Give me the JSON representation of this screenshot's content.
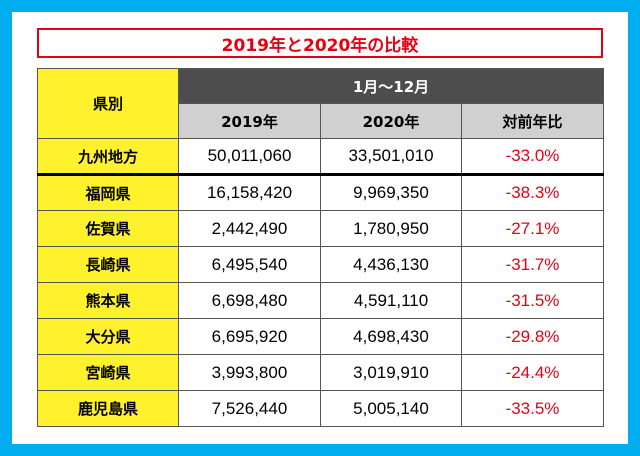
{
  "title": "2019年と2020年の比較",
  "header": {
    "prefecture_label": "県別",
    "period_label": "1月〜12月",
    "col_2019": "2019年",
    "col_2020": "2020年",
    "col_ratio": "対前年比"
  },
  "summary": {
    "name": "九州地方",
    "v2019": "50,011,060",
    "v2020": "33,501,010",
    "ratio": "-33.0%"
  },
  "rows": [
    {
      "name": "福岡県",
      "v2019": "16,158,420",
      "v2020": "9,969,350",
      "ratio": "-38.3%"
    },
    {
      "name": "佐賀県",
      "v2019": "2,442,490",
      "v2020": "1,780,950",
      "ratio": "-27.1%"
    },
    {
      "name": "長崎県",
      "v2019": "6,495,540",
      "v2020": "4,436,130",
      "ratio": "-31.7%"
    },
    {
      "name": "熊本県",
      "v2019": "6,698,480",
      "v2020": "4,591,110",
      "ratio": "-31.5%"
    },
    {
      "name": "大分県",
      "v2019": "6,695,920",
      "v2020": "4,698,430",
      "ratio": "-29.8%"
    },
    {
      "name": "宮崎県",
      "v2019": "3,993,800",
      "v2020": "3,019,910",
      "ratio": "-24.4%"
    },
    {
      "name": "鹿児島県",
      "v2019": "7,526,440",
      "v2020": "5,005,140",
      "ratio": "-33.5%"
    }
  ],
  "colors": {
    "background": "#00AEEF",
    "accent_red": "#E60012",
    "prefecture_yellow": "#FFF22D",
    "header_dark": "#4D4D4D",
    "subheader_gray": "#D0D0D0"
  }
}
